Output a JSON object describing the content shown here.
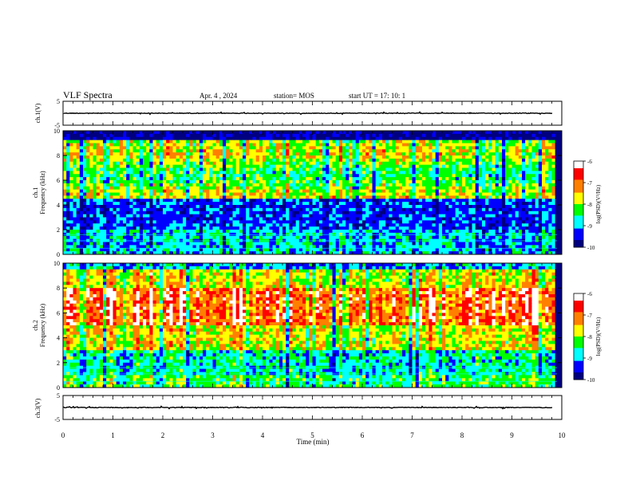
{
  "header": {
    "title": "VLF Spectra",
    "date": "Apr. 4  , 2024",
    "station": "station= MOS",
    "start": "start  UT  =    17: 10: 1"
  },
  "chart_data": [
    {
      "type": "line",
      "name": "ch1-waveform",
      "ylabel": "ch.1(V)",
      "xlim": [
        0,
        10
      ],
      "ylim": [
        -5,
        5
      ],
      "yticks": [
        5,
        -5
      ],
      "trace_level": 0
    },
    {
      "type": "heatmap",
      "name": "ch1-spectrogram",
      "ylabel": "ch.1\nFrequency (kHz)",
      "xlim": [
        0,
        10
      ],
      "ylim": [
        0,
        10
      ],
      "yticks": [
        0,
        2,
        4,
        6,
        8,
        10
      ],
      "colorbar": {
        "label": "log(PSD)(V²/Hz)",
        "ticks": [
          -6,
          -7,
          -8,
          -9,
          -10
        ],
        "range": [
          -10,
          -6
        ]
      },
      "bands_kHz": {
        "quiet_low": [
          2.0,
          4.5
        ],
        "active": [
          4.5,
          9.2
        ],
        "dark_top": [
          9.2,
          10
        ],
        "line_marks": [
          1.6,
          1.1,
          0.5
        ]
      }
    },
    {
      "type": "heatmap",
      "name": "ch2-spectrogram",
      "ylabel": "ch.2\nFrequency (kHz)",
      "xlim": [
        0,
        10
      ],
      "ylim": [
        0,
        10
      ],
      "yticks": [
        0,
        2,
        4,
        6,
        8,
        10
      ],
      "colorbar": {
        "label": "log(PSD)(V²/Hz)",
        "ticks": [
          -6,
          -7,
          -8,
          -9,
          -10
        ],
        "range": [
          -10,
          -6
        ]
      },
      "bands_kHz": {
        "peak": [
          5.0,
          8.0
        ],
        "mid": [
          3.0,
          9.5
        ],
        "line_marks": [
          1.6,
          1.1,
          0.5
        ]
      }
    },
    {
      "type": "line",
      "name": "ch3-waveform",
      "ylabel": "ch.3(V)",
      "xlim": [
        0,
        10
      ],
      "ylim": [
        -5,
        5
      ],
      "yticks": [
        5,
        -5
      ],
      "trace_level": 0
    }
  ],
  "xaxis": {
    "label": "Time  (min)",
    "ticks": [
      0,
      1,
      2,
      3,
      4,
      5,
      6,
      7,
      8,
      9,
      10
    ]
  },
  "colors": {
    "colormap": [
      "#000080",
      "#0000ff",
      "#00ffff",
      "#00ff00",
      "#ffff00",
      "#ff8000",
      "#ff0000",
      "#ffffff"
    ]
  }
}
